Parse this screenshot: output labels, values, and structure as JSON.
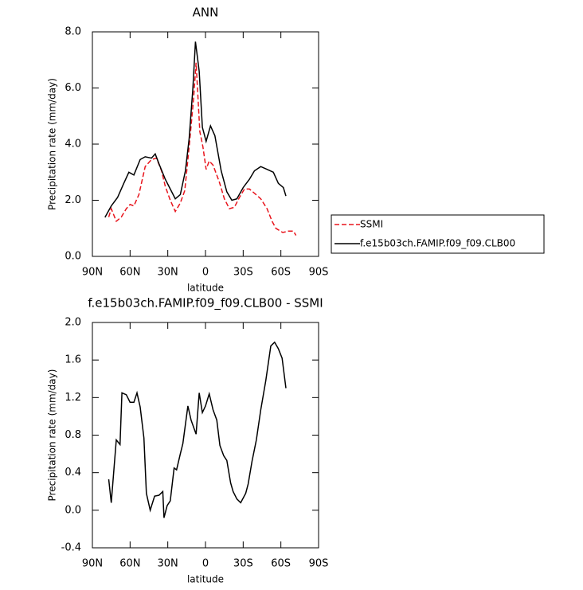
{
  "chart_data": [
    {
      "type": "line",
      "title": "ANN",
      "xlabel": "latitude",
      "ylabel": "Precipitation rate (mm/day)",
      "xlim": [
        90,
        -90
      ],
      "ylim": [
        0,
        8
      ],
      "xticks": [
        {
          "value": 90,
          "label": "90N"
        },
        {
          "value": 60,
          "label": "60N"
        },
        {
          "value": 30,
          "label": "30N"
        },
        0,
        {
          "value": -30,
          "label": "30S"
        },
        {
          "value": -60,
          "label": "60S"
        },
        {
          "value": -90,
          "label": "90S"
        }
      ],
      "yticks": [
        {
          "value": 0,
          "label": "0.0"
        },
        {
          "value": 2,
          "label": "2.0"
        },
        {
          "value": 4,
          "label": "4.0"
        },
        {
          "value": 6,
          "label": "6.0"
        },
        {
          "value": 8,
          "label": "8.0"
        }
      ],
      "series": [
        {
          "name": "SSMI",
          "color": "#e8141c",
          "dashed": true,
          "x": [
            77,
            75,
            71,
            67,
            63,
            60,
            57,
            53,
            48,
            43,
            39,
            35,
            32,
            28,
            24,
            20,
            16.5,
            13,
            9.5,
            7.5,
            4.5,
            2,
            -0.5,
            -3,
            -6,
            -11,
            -15,
            -19,
            -23,
            -27,
            -31,
            -35,
            -39,
            -44,
            -49,
            -53,
            -56,
            -61.5,
            -66,
            -70,
            -72
          ],
          "values": [
            1.4,
            1.7,
            1.25,
            1.4,
            1.7,
            1.85,
            1.8,
            2.2,
            3.2,
            3.45,
            3.5,
            3.05,
            2.5,
            2.0,
            1.6,
            1.9,
            2.35,
            3.9,
            5.6,
            6.9,
            4.45,
            3.9,
            3.1,
            3.4,
            3.25,
            2.65,
            2.05,
            1.7,
            1.75,
            2.1,
            2.4,
            2.4,
            2.25,
            2.05,
            1.7,
            1.25,
            1.0,
            0.85,
            0.9,
            0.9,
            0.75
          ]
        },
        {
          "name": "f.e15b03ch.FAMIP.f09_f09.CLB00",
          "color": "#000000",
          "dashed": false,
          "x": [
            80,
            75,
            70,
            65,
            61,
            57,
            52,
            48,
            43,
            40,
            37,
            32,
            28,
            24,
            20,
            16,
            13,
            10,
            8,
            5,
            2.5,
            -0.5,
            -4,
            -7.5,
            -12.5,
            -17,
            -21,
            -25,
            -30,
            -35,
            -39,
            -44,
            -49,
            -54,
            -58,
            -62,
            -64
          ],
          "values": [
            1.39,
            1.8,
            2.1,
            2.6,
            3.0,
            2.9,
            3.45,
            3.55,
            3.5,
            3.65,
            3.3,
            2.75,
            2.4,
            2.05,
            2.2,
            3.05,
            4.2,
            6.0,
            7.65,
            6.6,
            4.6,
            4.1,
            4.65,
            4.3,
            3.05,
            2.3,
            2.0,
            2.05,
            2.45,
            2.75,
            3.05,
            3.2,
            3.1,
            3.0,
            2.6,
            2.45,
            2.15
          ]
        }
      ]
    },
    {
      "type": "line",
      "title": "f.e15b03ch.FAMIP.f09_f09.CLB00 - SSMI",
      "xlabel": "latitude",
      "ylabel": "Precipitation rate (mm/day)",
      "xlim": [
        90,
        -90
      ],
      "ylim": [
        -0.4,
        2.0
      ],
      "xticks": [
        {
          "value": 90,
          "label": "90N"
        },
        {
          "value": 60,
          "label": "60N"
        },
        {
          "value": 30,
          "label": "30N"
        },
        0,
        {
          "value": -30,
          "label": "30S"
        },
        {
          "value": -60,
          "label": "60S"
        },
        {
          "value": -90,
          "label": "90S"
        }
      ],
      "yticks": [
        {
          "value": -0.4,
          "label": "-0.4"
        },
        {
          "value": 0,
          "label": "0.0"
        },
        0.4,
        0.8,
        {
          "value": 1.2,
          "label": "1.2"
        },
        1.6,
        {
          "value": 2,
          "label": "2.0"
        }
      ],
      "series": [
        {
          "color": "#000000",
          "dashed": false,
          "x": [
            77,
            75,
            71,
            68,
            66.5,
            63,
            60,
            57,
            54.5,
            52,
            49,
            47,
            44,
            40.5,
            37,
            34,
            33,
            30.5,
            28,
            25,
            23,
            20,
            18,
            14,
            11.5,
            7.5,
            5,
            2.5,
            0,
            -3,
            -6,
            -9,
            -11.5,
            -14.5,
            -17,
            -20,
            -22,
            -25,
            -28,
            -32,
            -34,
            -37,
            -40.5,
            -44,
            -48,
            -52,
            -55,
            -58,
            -61,
            -64
          ],
          "values": [
            0.33,
            0.08,
            0.75,
            0.7,
            1.25,
            1.23,
            1.15,
            1.15,
            1.25,
            1.1,
            0.77,
            0.18,
            0.0,
            0.15,
            0.16,
            0.2,
            -0.08,
            0.05,
            0.1,
            0.45,
            0.43,
            0.6,
            0.71,
            1.11,
            0.96,
            0.81,
            1.25,
            1.04,
            1.11,
            1.24,
            1.07,
            0.96,
            0.69,
            0.58,
            0.53,
            0.29,
            0.2,
            0.12,
            0.08,
            0.18,
            0.28,
            0.52,
            0.75,
            1.07,
            1.38,
            1.75,
            1.79,
            1.72,
            1.62,
            1.3
          ]
        }
      ]
    }
  ]
}
